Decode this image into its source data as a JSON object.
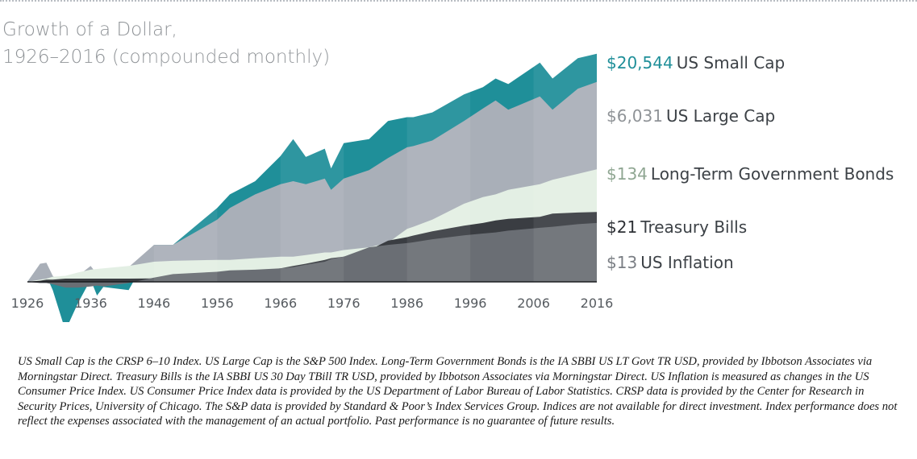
{
  "chart_data": {
    "type": "area",
    "title": "Growth of a Dollar,",
    "subtitle": "1926–2016 (compounded monthly)",
    "xlabel": "",
    "ylabel": "",
    "y_scale": "log",
    "y_range": [
      0.1,
      30000
    ],
    "x_range": [
      1926,
      2016
    ],
    "x_ticks": [
      "1926",
      "1936",
      "1946",
      "1956",
      "1966",
      "1976",
      "1986",
      "1996",
      "2006",
      "2016"
    ],
    "x": [
      1926,
      1928,
      1929,
      1930,
      1932,
      1934,
      1936,
      1937,
      1938,
      1942,
      1946,
      1949,
      1956,
      1958,
      1962,
      1966,
      1968,
      1970,
      1973,
      1974,
      1976,
      1980,
      1983,
      1986,
      1987,
      1990,
      1995,
      1998,
      2000,
      2002,
      2007,
      2009,
      2013,
      2016
    ],
    "series": [
      {
        "name": "US Small Cap",
        "color": "#1f8f99",
        "end_label": "$20,544",
        "values": [
          1,
          2.1,
          1.3,
          0.7,
          0.12,
          0.4,
          1.1,
          0.55,
          0.8,
          0.7,
          5,
          5,
          25,
          45,
          80,
          240,
          500,
          230,
          330,
          140,
          420,
          500,
          1100,
          1300,
          1300,
          1600,
          3500,
          4800,
          7000,
          5500,
          14000,
          7000,
          17000,
          20544
        ]
      },
      {
        "name": "US Large Cap",
        "color": "#a9afb8",
        "end_label": "$6,031",
        "values": [
          1,
          2.2,
          2.3,
          1.3,
          0.8,
          1.3,
          2,
          1.4,
          1.7,
          1.9,
          5,
          5,
          15,
          25,
          45,
          70,
          80,
          70,
          90,
          55,
          90,
          130,
          220,
          350,
          370,
          470,
          1100,
          1900,
          2700,
          1800,
          3200,
          1800,
          4500,
          6031
        ]
      },
      {
        "name": "Long-Term Government Bonds",
        "color": "#e3efe4",
        "end_label": "$134",
        "values": [
          1,
          1.1,
          1.15,
          1.25,
          1.3,
          1.5,
          1.7,
          1.75,
          1.8,
          2,
          2.4,
          2.5,
          2.6,
          2.6,
          2.8,
          3,
          3,
          3.2,
          3.6,
          3.6,
          4,
          4.5,
          5.5,
          10,
          11,
          15,
          30,
          40,
          45,
          55,
          70,
          85,
          110,
          134
        ]
      },
      {
        "name": "Treasury Bills",
        "color": "#3a3d42",
        "end_label": "$21",
        "values": [
          1,
          1.05,
          1.1,
          1.1,
          1.15,
          1.15,
          1.15,
          1.15,
          1.15,
          1.15,
          1.16,
          1.2,
          1.35,
          1.45,
          1.6,
          1.8,
          2,
          2.2,
          2.6,
          2.8,
          3,
          4,
          6,
          7,
          7.5,
          9,
          11.5,
          13,
          14.5,
          15.5,
          17,
          19.5,
          20.5,
          21
        ]
      },
      {
        "name": "US Inflation",
        "color": "#6a6e74",
        "end_label": "$13",
        "values": [
          1,
          0.95,
          0.95,
          0.9,
          0.78,
          0.78,
          0.82,
          0.85,
          0.82,
          0.95,
          1.2,
          1.4,
          1.55,
          1.65,
          1.7,
          1.8,
          1.9,
          2.1,
          2.4,
          2.7,
          3,
          4.5,
          5,
          5.4,
          5.6,
          6.4,
          7.6,
          8.2,
          8.6,
          9.3,
          10.5,
          11,
          12.3,
          13
        ]
      }
    ]
  },
  "labels": {
    "small_cap": {
      "value": "$20,544",
      "name": "US Small Cap",
      "color": "#1f8f99"
    },
    "large_cap": {
      "value": "$6,031",
      "name": "US Large Cap",
      "color": "#8f9397"
    },
    "bonds": {
      "value": "$134",
      "name": "Long-Term Government Bonds",
      "color": "#8fa692"
    },
    "tbills": {
      "value": "$21",
      "name": "Treasury Bills",
      "color": "#2d3035"
    },
    "inflation": {
      "value": "$13",
      "name": "US Inflation",
      "color": "#7a7e84"
    }
  },
  "footnote": "US Small Cap is the CRSP 6–10 Index. US Large Cap is the S&P 500 Index. Long-Term Government Bonds is the IA SBBI US LT Govt TR USD, provided by Ibbotson Associates via Morningstar Direct. Treasury Bills is the IA SBBI US 30 Day TBill TR USD, provided by Ibbotson Associates via Morningstar Direct. US Inflation is measured as changes in the US Consumer Price Index. US Consumer Price Index data is provided by the US Department of Labor Bureau of Labor Statistics. CRSP data is provided by the Center for Research in Security Prices, University of Chicago. The S&P data is provided by Standard & Poor’s Index Services Group. Indices are not available for direct investment. Index performance does not reflect the expenses associated with the management of an actual portfolio. Past performance is no guarantee of future results."
}
